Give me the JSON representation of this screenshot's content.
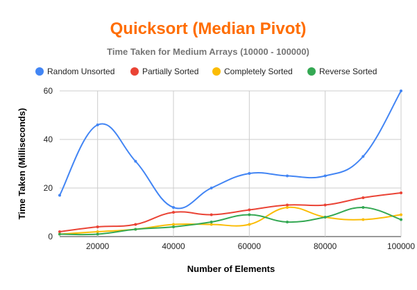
{
  "chart_data": {
    "type": "line",
    "title": "Quicksort (Median Pivot)",
    "subtitle": "Time Taken for Medium Arrays (10000 - 100000)",
    "xlabel": "Number of Elements",
    "ylabel": "Time Taken (Milliseconds)",
    "x": [
      10000,
      20000,
      30000,
      40000,
      50000,
      60000,
      70000,
      80000,
      90000,
      100000
    ],
    "xlim": [
      10000,
      100000
    ],
    "ylim": [
      0,
      60
    ],
    "xticks": [
      20000,
      40000,
      60000,
      80000,
      100000
    ],
    "yticks": [
      0,
      20,
      40,
      60
    ],
    "grid": true,
    "smooth": true,
    "legend_position": "top",
    "series": [
      {
        "name": "Random Unsorted",
        "color": "#4285f4",
        "values": [
          17,
          46,
          31,
          12,
          20,
          26,
          25,
          25,
          33,
          60
        ]
      },
      {
        "name": "Partially Sorted",
        "color": "#ea4335",
        "values": [
          2,
          4,
          5,
          10,
          9,
          11,
          13,
          13,
          16,
          18
        ]
      },
      {
        "name": "Completely Sorted",
        "color": "#fbbc04",
        "values": [
          1,
          2,
          3,
          5,
          5,
          5,
          12,
          8,
          7,
          9
        ]
      },
      {
        "name": "Reverse Sorted",
        "color": "#34a853",
        "values": [
          1,
          1,
          3,
          4,
          6,
          9,
          6,
          8,
          12,
          7
        ]
      }
    ]
  }
}
